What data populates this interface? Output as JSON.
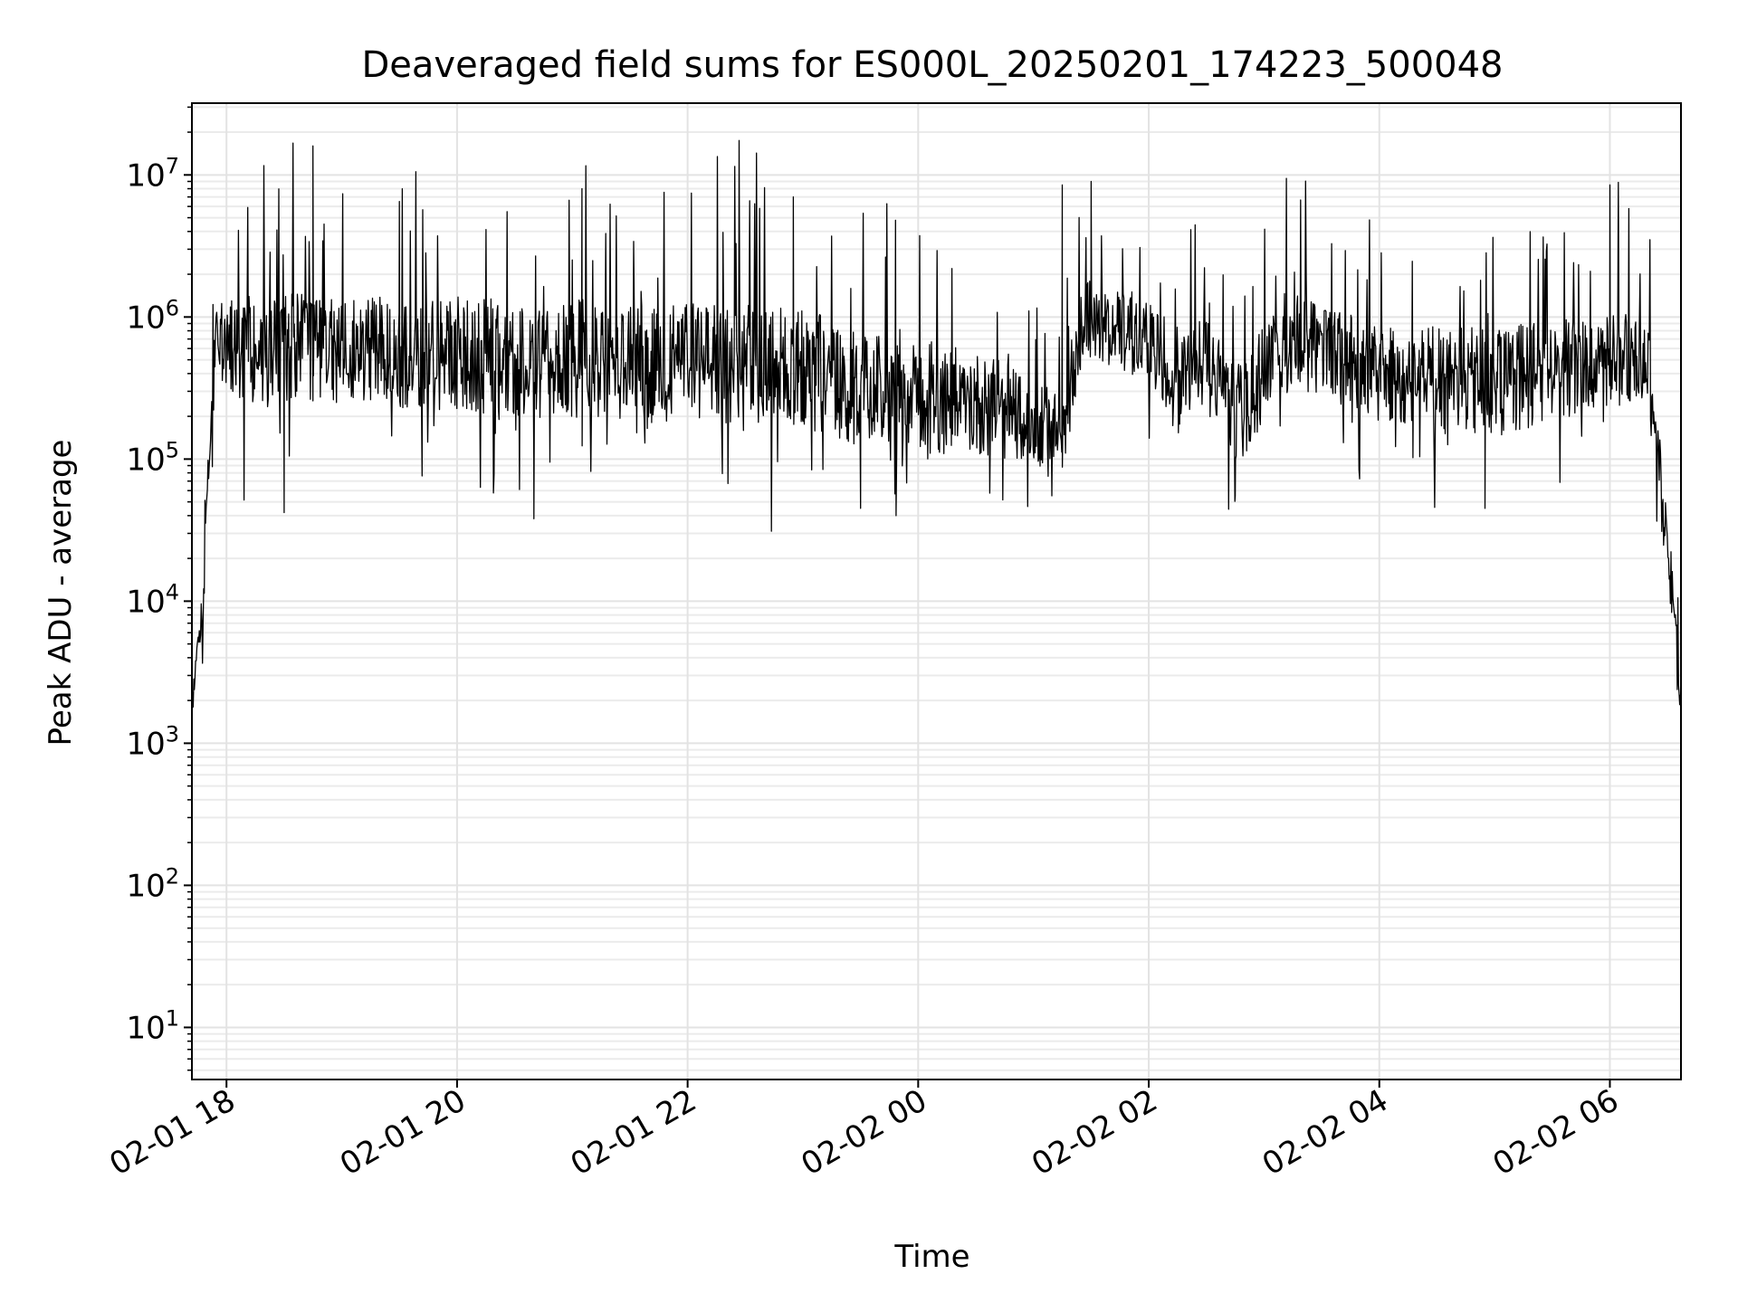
{
  "chart_data": {
    "type": "line",
    "title": "Deaveraged field sums for ES000L_20250201_174223_500048",
    "xlabel": "Time",
    "ylabel": "Peak ADU - average",
    "x_range": [
      "2025-02-01 17:42",
      "2025-02-02 06:37"
    ],
    "x_ticks": [
      {
        "time": "2025-02-01 18:00",
        "label": "02-01 18"
      },
      {
        "time": "2025-02-01 20:00",
        "label": "02-01 20"
      },
      {
        "time": "2025-02-01 22:00",
        "label": "02-01 22"
      },
      {
        "time": "2025-02-02 00:00",
        "label": "02-02 00"
      },
      {
        "time": "2025-02-02 02:00",
        "label": "02-02 02"
      },
      {
        "time": "2025-02-02 04:00",
        "label": "02-02 04"
      },
      {
        "time": "2025-02-02 06:00",
        "label": "02-02 06"
      }
    ],
    "y_scale": "log",
    "y_range": [
      4.3,
      32000000
    ],
    "y_ticks": [
      {
        "value": 10,
        "base": "10",
        "exp": "1"
      },
      {
        "value": 100,
        "base": "10",
        "exp": "2"
      },
      {
        "value": 1000,
        "base": "10",
        "exp": "3"
      },
      {
        "value": 10000,
        "base": "10",
        "exp": "4"
      },
      {
        "value": 100000,
        "base": "10",
        "exp": "5"
      },
      {
        "value": 1000000,
        "base": "10",
        "exp": "6"
      },
      {
        "value": 10000000,
        "base": "10",
        "exp": "7"
      }
    ],
    "grid": true,
    "series": [
      {
        "color": "#000000",
        "profile": [
          {
            "time": "2025-02-01 17:42",
            "base": 1700,
            "spread": 1.4
          },
          {
            "time": "2025-02-01 17:45",
            "base": 5000,
            "spread": 1.6
          },
          {
            "time": "2025-02-01 17:48",
            "base": 9000,
            "spread": 1.8
          },
          {
            "time": "2025-02-01 17:51",
            "base": 150000,
            "spread": 2.5
          },
          {
            "time": "2025-02-01 17:55",
            "base": 700000,
            "spread": 3
          },
          {
            "time": "2025-02-01 18:10",
            "base": 600000,
            "spread": 5
          },
          {
            "time": "2025-02-01 19:00",
            "base": 600000,
            "spread": 5
          },
          {
            "time": "2025-02-01 21:00",
            "base": 500000,
            "spread": 6
          },
          {
            "time": "2025-02-01 23:00",
            "base": 450000,
            "spread": 6
          },
          {
            "time": "2025-02-01 23:30",
            "base": 300000,
            "spread": 6
          },
          {
            "time": "2025-02-02 00:30",
            "base": 250000,
            "spread": 5
          },
          {
            "time": "2025-02-02 01:15",
            "base": 150000,
            "spread": 3
          },
          {
            "time": "2025-02-02 01:25",
            "base": 900000,
            "spread": 4
          },
          {
            "time": "2025-02-02 02:00",
            "base": 700000,
            "spread": 3
          },
          {
            "time": "2025-02-02 02:15",
            "base": 300000,
            "spread": 4
          },
          {
            "time": "2025-02-02 02:30",
            "base": 600000,
            "spread": 3
          },
          {
            "time": "2025-02-02 02:45",
            "base": 200000,
            "spread": 5
          },
          {
            "time": "2025-02-02 03:15",
            "base": 700000,
            "spread": 4
          },
          {
            "time": "2025-02-02 04:00",
            "base": 400000,
            "spread": 4
          },
          {
            "time": "2025-02-02 05:00",
            "base": 350000,
            "spread": 5
          },
          {
            "time": "2025-02-02 06:05",
            "base": 500000,
            "spread": 4
          },
          {
            "time": "2025-02-02 06:20",
            "base": 500000,
            "spread": 3
          },
          {
            "time": "2025-02-02 06:28",
            "base": 40000,
            "spread": 3
          },
          {
            "time": "2025-02-02 06:34",
            "base": 8000,
            "spread": 2
          },
          {
            "time": "2025-02-02 06:37",
            "base": 1600,
            "spread": 1.5
          }
        ],
        "spikes": [
          {
            "time": "2025-02-01 18:45",
            "value": 16000000
          },
          {
            "time": "2025-02-01 21:05",
            "value": 8000000
          },
          {
            "time": "2025-02-02 01:15",
            "value": 8500000
          },
          {
            "time": "2025-02-02 01:30",
            "value": 9000000
          },
          {
            "time": "2025-02-02 06:00",
            "value": 8500000
          },
          {
            "time": "2025-02-01 19:30",
            "value": 6500000
          },
          {
            "time": "2025-02-01 22:55",
            "value": 7000000
          }
        ],
        "dips": [
          {
            "time": "2025-02-01 18:30",
            "value": 42000
          },
          {
            "time": "2025-02-01 20:40",
            "value": 38000
          },
          {
            "time": "2025-02-01 23:30",
            "value": 45000
          },
          {
            "time": "2025-02-02 02:45",
            "value": 55000
          },
          {
            "time": "2025-02-02 04:55",
            "value": 45000
          }
        ]
      }
    ]
  }
}
